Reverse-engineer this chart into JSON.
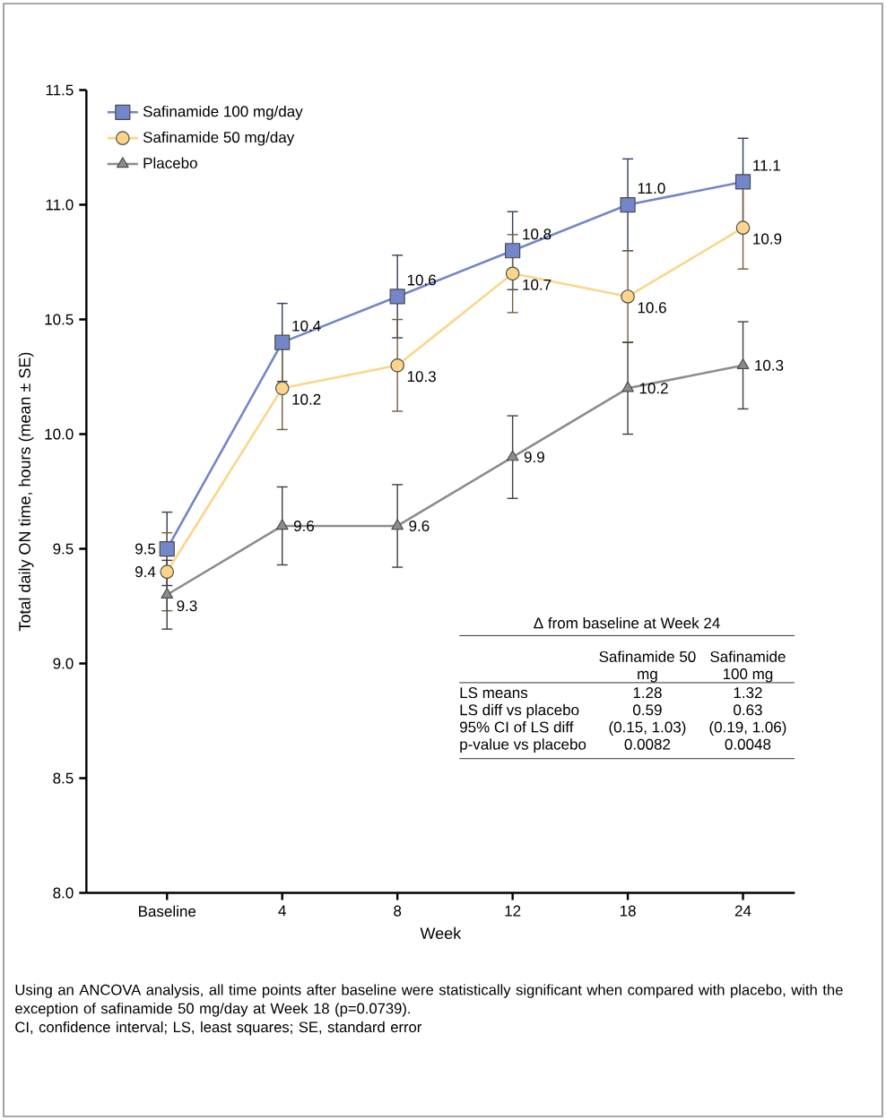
{
  "chart_data": {
    "type": "line",
    "xlabel": "Week",
    "ylabel": "Total daily ON time, hours (mean ± SE)",
    "categories": [
      "Baseline",
      "4",
      "8",
      "12",
      "18",
      "24"
    ],
    "series": [
      {
        "name": "Safinamide 100 mg/day",
        "color": "#7286c9",
        "marker": "square",
        "values": [
          9.5,
          10.4,
          10.6,
          10.8,
          11.0,
          11.1
        ],
        "value_labels": [
          "9.5",
          "10.4",
          "10.6",
          "10.8",
          "11.0",
          "11.1"
        ],
        "errors": [
          0.16,
          0.17,
          0.18,
          0.17,
          0.2,
          0.19
        ]
      },
      {
        "name": "Safinamide 50 mg/day",
        "color": "#fcd58a",
        "marker": "circle",
        "values": [
          9.4,
          10.2,
          10.3,
          10.7,
          10.6,
          10.9
        ],
        "value_labels": [
          "9.4",
          "10.2",
          "10.3",
          "10.7",
          "10.6",
          "10.9"
        ],
        "errors": [
          0.17,
          0.18,
          0.2,
          0.17,
          0.2,
          0.18
        ]
      },
      {
        "name": "Placebo",
        "color": "#8c8c8c",
        "marker": "triangle",
        "values": [
          9.3,
          9.6,
          9.6,
          9.9,
          10.2,
          10.3
        ],
        "value_labels": [
          "9.3",
          "9.6",
          "9.6",
          "9.9",
          "10.2",
          "10.3"
        ],
        "errors": [
          0.15,
          0.17,
          0.18,
          0.18,
          0.2,
          0.19
        ]
      }
    ],
    "ylim": [
      8.0,
      11.5
    ],
    "yticks": [
      {
        "value": 8.0,
        "label": "8.0"
      },
      {
        "value": 8.5,
        "label": "8.5"
      },
      {
        "value": 9.0,
        "label": "9.0"
      },
      {
        "value": 9.5,
        "label": "9.5"
      },
      {
        "value": 10.0,
        "label": "10.0"
      },
      {
        "value": 10.5,
        "label": "10.5"
      },
      {
        "value": 11.0,
        "label": "11.0"
      },
      {
        "value": 11.5,
        "label": "11.5"
      }
    ],
    "grid": false,
    "legend": "top left",
    "annotations": [
      "Δ from baseline at Week 24",
      "Safinamide 50 mg",
      "Safinamide 100 mg",
      "LS means",
      "1.28",
      "1.32",
      "LS diff vs placebo",
      "0.59",
      "0.63",
      "95% CI of LS diff",
      "(0.15, 1.03)",
      "(0.19, 1.06)",
      "p-value vs placebo",
      "0.0082",
      "0.0048",
      "Using an ANCOVA analysis, all time points after baseline were statistically significant when compared with placebo, with the exception of safinamide 50 mg/day at Week 18 (p=0.0739).",
      "CI, confidence interval; LS, least squares; SE, standard error"
    ]
  }
}
